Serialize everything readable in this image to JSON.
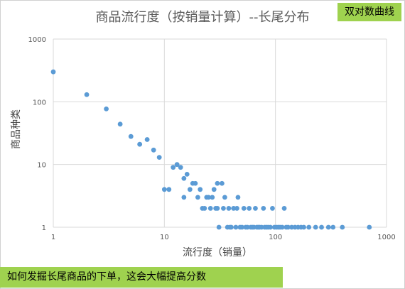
{
  "title": "商品流行度（按销量计算）--长尾分布",
  "tag": "双对数曲线",
  "bottom_note": "如何发掘长尾商品的下单，这会大幅提高分数",
  "chart_data": {
    "type": "scatter",
    "title": "商品流行度（按销量计算）--长尾分布",
    "xlabel": "流行度（销量）",
    "ylabel": "商品种类",
    "xscale": "log",
    "yscale": "log",
    "xlim": [
      1,
      1000
    ],
    "ylim": [
      1,
      1000
    ],
    "x_ticks": [
      "1",
      "10",
      "100",
      "1000"
    ],
    "y_ticks": [
      "1",
      "10",
      "100",
      "1000"
    ],
    "grid": true,
    "marker_color": "#5b9bd5",
    "points": [
      [
        1,
        300
      ],
      [
        2,
        130
      ],
      [
        3,
        77
      ],
      [
        4,
        44
      ],
      [
        5,
        28
      ],
      [
        6,
        21
      ],
      [
        7,
        25
      ],
      [
        8,
        17
      ],
      [
        9,
        13
      ],
      [
        10,
        4
      ],
      [
        11,
        4
      ],
      [
        12,
        9
      ],
      [
        13,
        10
      ],
      [
        14,
        9
      ],
      [
        15,
        3
      ],
      [
        15,
        6
      ],
      [
        16,
        7
      ],
      [
        17,
        4
      ],
      [
        18,
        5
      ],
      [
        19,
        5
      ],
      [
        20,
        3
      ],
      [
        21,
        4
      ],
      [
        22,
        2
      ],
      [
        23,
        2
      ],
      [
        24,
        3
      ],
      [
        25,
        3
      ],
      [
        26,
        2
      ],
      [
        27,
        3
      ],
      [
        28,
        4
      ],
      [
        29,
        2
      ],
      [
        30,
        5
      ],
      [
        30,
        2
      ],
      [
        31,
        1
      ],
      [
        33,
        5
      ],
      [
        34,
        2
      ],
      [
        35,
        3
      ],
      [
        37,
        1
      ],
      [
        38,
        2
      ],
      [
        39,
        1
      ],
      [
        40,
        1
      ],
      [
        42,
        2
      ],
      [
        44,
        1
      ],
      [
        45,
        2
      ],
      [
        46,
        3
      ],
      [
        48,
        1
      ],
      [
        50,
        1
      ],
      [
        52,
        2
      ],
      [
        54,
        1
      ],
      [
        56,
        1
      ],
      [
        58,
        2
      ],
      [
        60,
        1
      ],
      [
        62,
        1
      ],
      [
        64,
        1
      ],
      [
        66,
        2
      ],
      [
        68,
        1
      ],
      [
        70,
        1
      ],
      [
        72,
        1
      ],
      [
        75,
        1
      ],
      [
        78,
        2
      ],
      [
        80,
        1
      ],
      [
        83,
        1
      ],
      [
        86,
        1
      ],
      [
        90,
        1
      ],
      [
        94,
        2
      ],
      [
        98,
        1
      ],
      [
        102,
        1
      ],
      [
        106,
        1
      ],
      [
        110,
        1
      ],
      [
        115,
        1
      ],
      [
        120,
        2
      ],
      [
        125,
        1
      ],
      [
        130,
        1
      ],
      [
        140,
        1
      ],
      [
        150,
        1
      ],
      [
        160,
        1
      ],
      [
        170,
        1
      ],
      [
        180,
        1
      ],
      [
        200,
        1
      ],
      [
        230,
        1
      ],
      [
        260,
        1
      ],
      [
        300,
        1
      ],
      [
        330,
        1
      ],
      [
        400,
        1
      ],
      [
        700,
        1
      ]
    ]
  }
}
